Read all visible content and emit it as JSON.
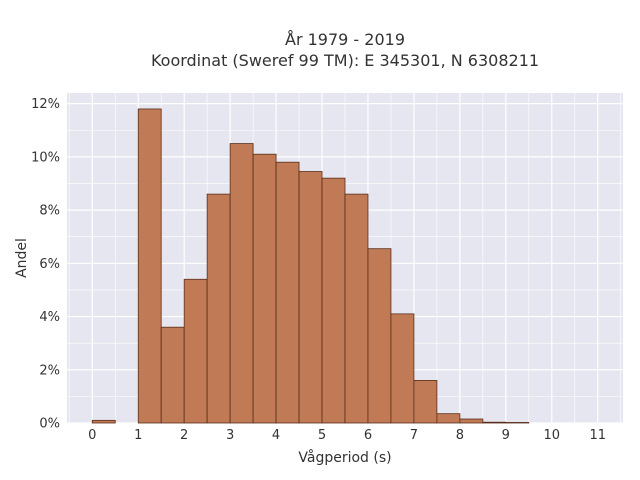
{
  "chart_data": {
    "type": "bar",
    "title": "År 1979 - 2019",
    "subtitle": "Koordinat (Sweref 99 TM): E 345301, N 6308211",
    "xlabel": "Vågperiod (s)",
    "ylabel": "Andel",
    "bin_width": 0.5,
    "bins": [
      {
        "start": 0.0,
        "value": 0.1
      },
      {
        "start": 0.5,
        "value": 0.0
      },
      {
        "start": 1.0,
        "value": 11.8
      },
      {
        "start": 1.5,
        "value": 3.6
      },
      {
        "start": 2.0,
        "value": 5.4
      },
      {
        "start": 2.5,
        "value": 8.6
      },
      {
        "start": 3.0,
        "value": 10.5
      },
      {
        "start": 3.5,
        "value": 10.1
      },
      {
        "start": 4.0,
        "value": 9.8
      },
      {
        "start": 4.5,
        "value": 9.45
      },
      {
        "start": 5.0,
        "value": 9.2
      },
      {
        "start": 5.5,
        "value": 8.6
      },
      {
        "start": 6.0,
        "value": 6.55
      },
      {
        "start": 6.5,
        "value": 4.1
      },
      {
        "start": 7.0,
        "value": 1.6
      },
      {
        "start": 7.5,
        "value": 0.35
      },
      {
        "start": 8.0,
        "value": 0.15
      },
      {
        "start": 8.5,
        "value": 0.03
      },
      {
        "start": 9.0,
        "value": 0.02
      }
    ],
    "xlim": [
      -0.55,
      11.55
    ],
    "ylim": [
      0,
      12.4
    ],
    "xticks": [
      0,
      1,
      2,
      3,
      4,
      5,
      6,
      7,
      8,
      9,
      10,
      11
    ],
    "yticks": [
      0,
      2,
      4,
      6,
      8,
      10,
      12
    ],
    "ytick_suffix": "%",
    "grid": true,
    "colors": {
      "bar_fill": "#c07a55",
      "bar_stroke": "#5a2e1a",
      "plot_background": "#e5e6ef",
      "grid": "#ffffff"
    }
  }
}
